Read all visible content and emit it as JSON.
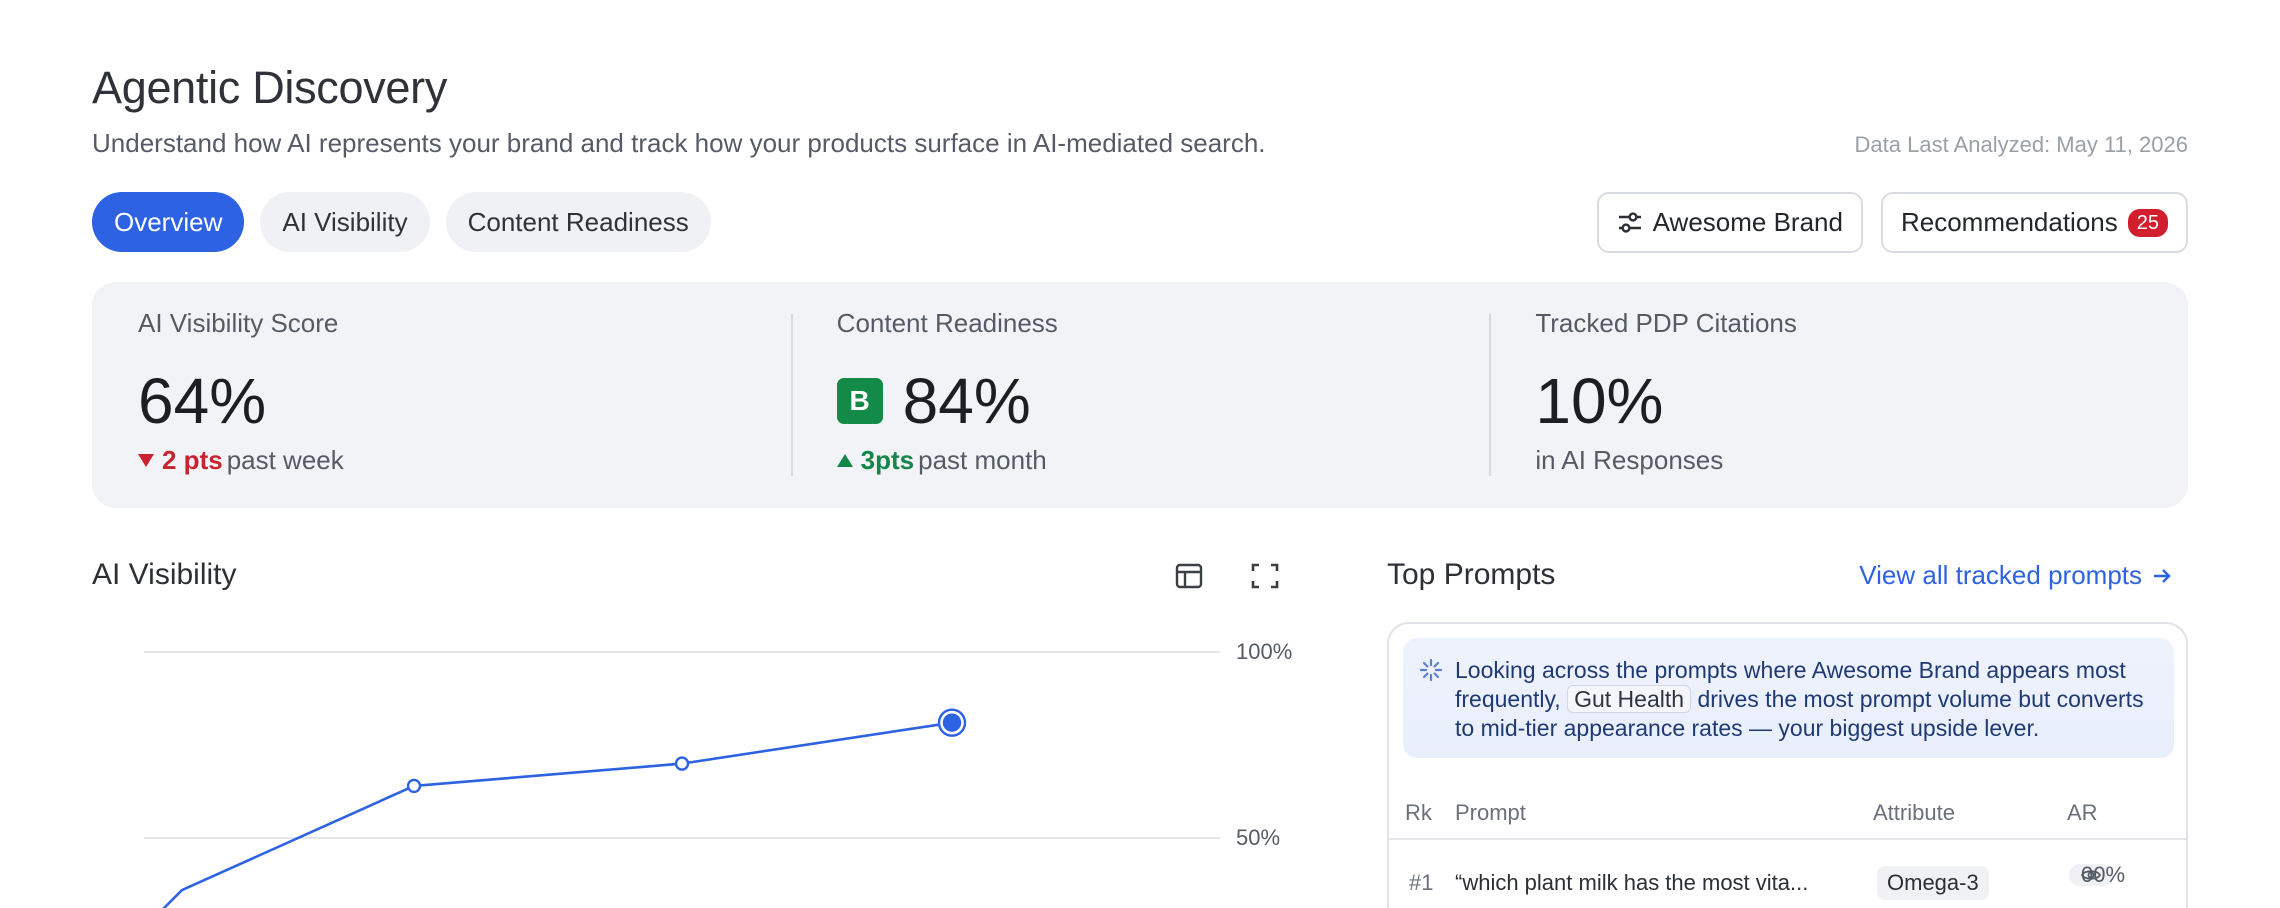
{
  "header": {
    "title": "Agentic Discovery",
    "subtitle": "Understand how AI represents your brand and track how your products surface in AI-mediated search.",
    "last_analyzed": "Data Last Analyzed: May 11, 2026"
  },
  "tabs": [
    {
      "label": "Overview",
      "active": true
    },
    {
      "label": "AI Visibility",
      "active": false
    },
    {
      "label": "Content Readiness",
      "active": false
    }
  ],
  "actions": {
    "brand_label": "Awesome Brand",
    "brand_icon": "sliders-icon",
    "recommendations_label": "Recommendations",
    "recommendations_count": "25"
  },
  "stats": [
    {
      "label": "AI Visibility Score",
      "value": "64%",
      "delta": "2 pts",
      "delta_dir": "down",
      "period": "past week"
    },
    {
      "label": "Content Readiness",
      "grade": "B",
      "value": "84%",
      "delta": "3pts",
      "delta_dir": "up",
      "period": "past month"
    },
    {
      "label": "Tracked PDP Citations",
      "value": "10%",
      "foot": "in AI Responses"
    }
  ],
  "visibility": {
    "title": "AI Visibility",
    "icons": [
      "table-icon",
      "expand-icon"
    ]
  },
  "chart_data": {
    "type": "line",
    "title": "",
    "y_ticks": [
      "100%",
      "50%"
    ],
    "ylim": [
      0,
      100
    ],
    "series": [
      {
        "values": [
          36,
          64,
          70,
          81
        ]
      }
    ],
    "grid": true,
    "colors": {
      "line": "#2d63e2",
      "grid": "#e4e6ea"
    }
  },
  "prompts": {
    "title": "Top Prompts",
    "link_label": "View all tracked prompts",
    "insight_pre": "Looking across the prompts where Awesome Brand appears most frequently,",
    "insight_chip": "Gut Health",
    "insight_post": "drives the most prompt volume but converts to mid-tier appearance rates — your biggest upside lever.",
    "columns": [
      "Rk",
      "Prompt",
      "Attribute",
      "AR"
    ],
    "rows": [
      {
        "rank": "#1",
        "prompt": "“which plant milk has the most vita...",
        "attribute": "Omega-3",
        "ar": "00%"
      }
    ]
  }
}
